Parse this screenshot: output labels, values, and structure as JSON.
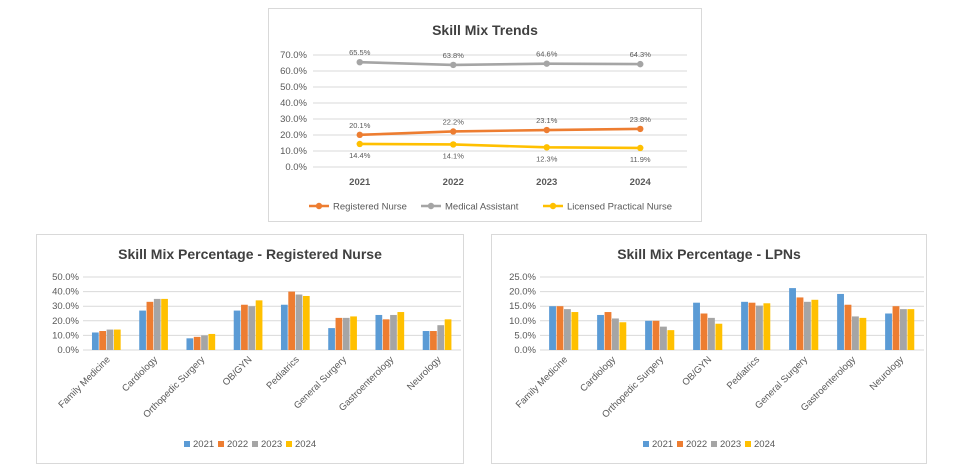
{
  "colors": {
    "y2021": "#5b9bd5",
    "y2022": "#ed7d31",
    "y2023": "#a5a5a5",
    "y2024": "#ffc000",
    "grid": "#d9d9d9"
  },
  "chart_data": [
    {
      "type": "line",
      "title": "Skill Mix Trends",
      "categories": [
        "2021",
        "2022",
        "2023",
        "2024"
      ],
      "yticks": [
        "0.0%",
        "10.0%",
        "20.0%",
        "30.0%",
        "40.0%",
        "50.0%",
        "60.0%",
        "70.0%"
      ],
      "ylim": [
        0,
        70
      ],
      "series": [
        {
          "name": "Registered Nurse",
          "values": [
            20.1,
            22.2,
            23.1,
            23.8
          ],
          "labels": [
            "20.1%",
            "22.2%",
            "23.1%",
            "23.8%"
          ],
          "color": "#ed7d31",
          "label_pos": "above"
        },
        {
          "name": "Medical Assistant",
          "values": [
            65.5,
            63.8,
            64.6,
            64.3
          ],
          "labels": [
            "65.5%",
            "63.8%",
            "64.6%",
            "64.3%"
          ],
          "color": "#a5a5a5",
          "label_pos": "above"
        },
        {
          "name": "Licensed Practical Nurse",
          "values": [
            14.4,
            14.1,
            12.3,
            11.9
          ],
          "labels": [
            "14.4%",
            "14.1%",
            "12.3%",
            "11.9%"
          ],
          "color": "#ffc000",
          "label_pos": "below"
        }
      ],
      "grid": true,
      "legend": "bottom"
    },
    {
      "type": "bar",
      "title": "Skill Mix Percentage - Registered Nurse",
      "categories": [
        "Family Medicine",
        "Cardiology",
        "Orthopedic Surgery",
        "OB/GYN",
        "Pediatrics",
        "General Surgery",
        "Gastroenterology",
        "Neurology"
      ],
      "yticks": [
        "0.0%",
        "10.0%",
        "20.0%",
        "30.0%",
        "40.0%",
        "50.0%"
      ],
      "ylim": [
        0,
        50
      ],
      "series": [
        {
          "name": "2021",
          "values": [
            12,
            27,
            8,
            27,
            31,
            15,
            24,
            13
          ],
          "color": "#5b9bd5"
        },
        {
          "name": "2022",
          "values": [
            13,
            33,
            9,
            31,
            40,
            22,
            21,
            13
          ],
          "color": "#ed7d31"
        },
        {
          "name": "2023",
          "values": [
            14,
            35,
            10,
            30,
            38,
            22,
            24,
            17
          ],
          "color": "#a5a5a5"
        },
        {
          "name": "2024",
          "values": [
            14,
            35,
            11,
            34,
            37,
            23,
            26,
            21
          ],
          "color": "#ffc000"
        }
      ],
      "grid": true,
      "legend": "bottom"
    },
    {
      "type": "bar",
      "title": "Skill Mix Percentage - LPNs",
      "categories": [
        "Family Medicine",
        "Cardiology",
        "Orthopedic Surgery",
        "OB/GYN",
        "Pediatrics",
        "General Surgery",
        "Gastroenterology",
        "Neurology"
      ],
      "yticks": [
        "0.0%",
        "5.0%",
        "10.0%",
        "15.0%",
        "20.0%",
        "25.0%"
      ],
      "ylim": [
        0,
        25
      ],
      "series": [
        {
          "name": "2021",
          "values": [
            15,
            12,
            10,
            16.2,
            16.5,
            21.2,
            19.2,
            12.5
          ],
          "color": "#5b9bd5"
        },
        {
          "name": "2022",
          "values": [
            15,
            13,
            10,
            12.5,
            16.2,
            18,
            15.5,
            15
          ],
          "color": "#ed7d31"
        },
        {
          "name": "2023",
          "values": [
            14,
            10.8,
            8,
            11,
            15.2,
            16.5,
            11.5,
            14
          ],
          "color": "#a5a5a5"
        },
        {
          "name": "2024",
          "values": [
            13,
            9.5,
            6.8,
            9,
            16,
            17.2,
            11,
            14
          ],
          "color": "#ffc000"
        }
      ],
      "grid": true,
      "legend": "bottom"
    }
  ]
}
